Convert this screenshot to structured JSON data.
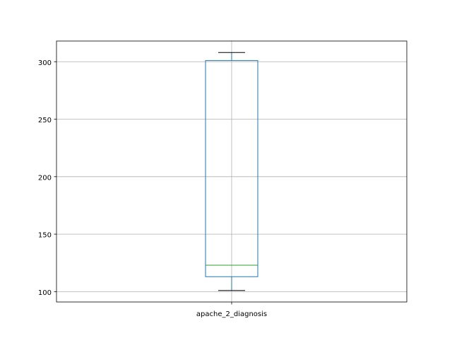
{
  "chart_data": {
    "type": "box",
    "categories": [
      "apache_2_diagnosis"
    ],
    "boxes": [
      {
        "name": "apache_2_diagnosis",
        "whisker_low": 101,
        "q1": 113,
        "median": 123,
        "q3": 301,
        "whisker_high": 308
      }
    ],
    "ylim": [
      91,
      318
    ],
    "yticks": [
      100,
      150,
      200,
      250,
      300
    ],
    "grid": true,
    "colors": {
      "box": "#1f77b4",
      "median": "#2ca02c",
      "whisker": "#000000",
      "grid": "#b0b0b0",
      "frame": "#000000"
    }
  }
}
